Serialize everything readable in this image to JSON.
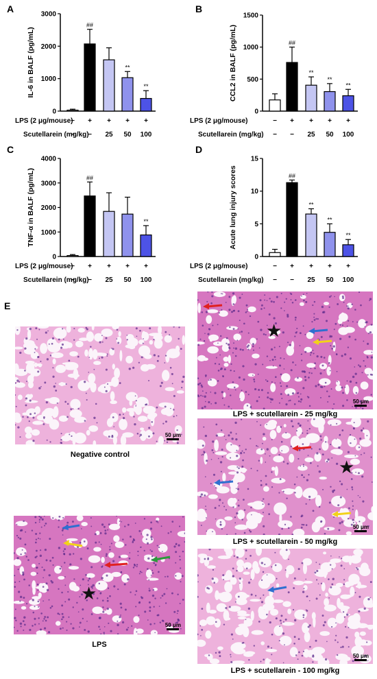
{
  "panel_letters": {
    "a": "A",
    "b": "B",
    "c": "C",
    "d": "D",
    "e": "E"
  },
  "treatment_rows": {
    "lps_label": "LPS (2 μg/mouse)",
    "lps_signs": [
      "−",
      "+",
      "+",
      "+",
      "+"
    ],
    "scut_label": "Scutellarein (mg/kg)",
    "scut_values": [
      "−",
      "−",
      "25",
      "50",
      "100"
    ]
  },
  "bar_colors": [
    "#ffffff",
    "#000000",
    "#c4c6f3",
    "#8f92ec",
    "#4d53e6"
  ],
  "chart_data": [
    {
      "type": "bar",
      "ylabel": "IL-6 in BALF (pg/mL)",
      "ylim": [
        0,
        3000
      ],
      "yticks": [
        "0",
        "1000",
        "2000",
        "3000"
      ],
      "values": [
        30,
        2070,
        1580,
        1030,
        390
      ],
      "errors": [
        30,
        450,
        370,
        190,
        240
      ],
      "sig": [
        "",
        "##",
        "",
        "**",
        "**"
      ]
    },
    {
      "type": "bar",
      "ylabel": "CCL2 in BALF (pg/mL)",
      "ylim": [
        0,
        1500
      ],
      "yticks": [
        "0",
        "500",
        "1000",
        "1500"
      ],
      "values": [
        175,
        760,
        405,
        305,
        240
      ],
      "errors": [
        95,
        240,
        130,
        125,
        100
      ],
      "sig": [
        "",
        "##",
        "**",
        "**",
        "**"
      ]
    },
    {
      "type": "bar",
      "ylabel": "TNF-α in BALF (pg/mL)",
      "ylim": [
        0,
        4000
      ],
      "yticks": [
        "0",
        "1000",
        "2000",
        "3000",
        "4000"
      ],
      "values": [
        40,
        2470,
        1840,
        1730,
        880
      ],
      "errors": [
        40,
        570,
        760,
        690,
        380
      ],
      "sig": [
        "",
        "##",
        "",
        "",
        "**"
      ]
    },
    {
      "type": "bar",
      "ylabel": "Acute lung injury scores",
      "ylim": [
        0,
        15
      ],
      "yticks": [
        "0",
        "5",
        "10",
        "15"
      ],
      "values": [
        0.6,
        11.3,
        6.5,
        3.7,
        1.8
      ],
      "errors": [
        0.5,
        0.4,
        0.8,
        1.3,
        0.8
      ],
      "sig": [
        "",
        "##",
        "**",
        "**",
        "**"
      ]
    }
  ],
  "histology": {
    "scale_bar": "50 μm",
    "captions": {
      "neg": "Negative control",
      "lps": "LPS",
      "s25": "LPS + scutellarein - 25 mg/kg",
      "s50": "LPS + scutellarein - 50 mg/kg",
      "s100": "LPS + scutellarein - 100 mg/kg"
    },
    "star_glyph": "★",
    "arrow_colors": {
      "red": "#e02020",
      "blue": "#2f6fd0",
      "yellow": "#f2d21a",
      "green": "#2a9a3a"
    }
  }
}
